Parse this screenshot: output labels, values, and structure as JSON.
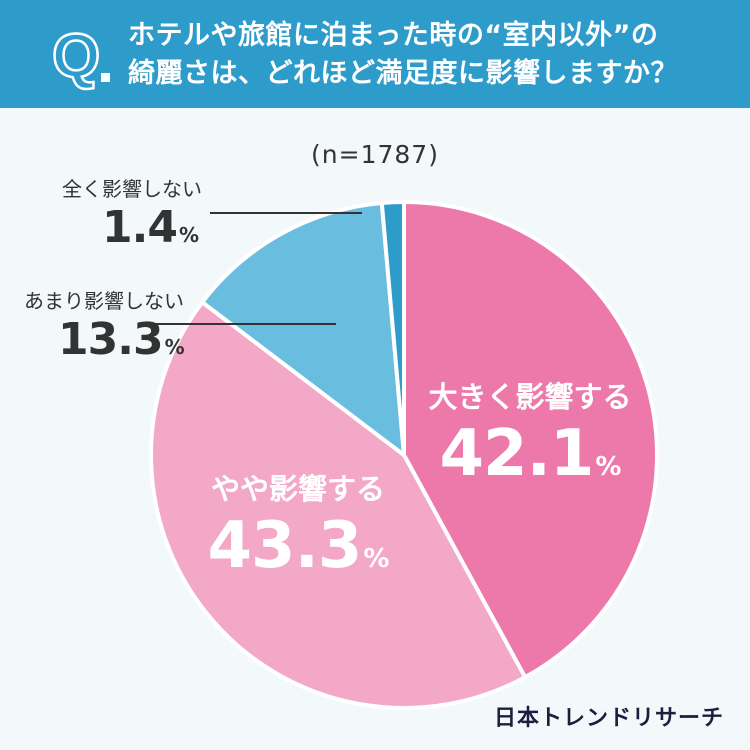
{
  "header": {
    "q_mark": "Q",
    "question_line1": "ホテルや旅館に泊まった時の“室内以外”の",
    "question_line2": "綺麗さは、どれほど満足度に影響しますか？"
  },
  "sample_size": "(n=1787)",
  "labels": {
    "big": {
      "name": "大きく影響する",
      "value": "42.1",
      "unit": "%"
    },
    "some": {
      "name": "やや影響する",
      "value": "43.3",
      "unit": "%"
    },
    "little": {
      "name": "あまり影響しない",
      "value": "13.3",
      "unit": "%"
    },
    "none": {
      "name": "全く影響しない",
      "value": "1.4",
      "unit": "%"
    }
  },
  "brand": "日本トレンドリサーチ",
  "colors": {
    "header_bg": "#2e9ccb",
    "big": "#ec79a9",
    "some": "#f3a8c8",
    "little": "#69bee0",
    "none": "#2e9ccb"
  },
  "chart_data": {
    "type": "pie",
    "title": "",
    "slices": [
      {
        "label": "大きく影響する",
        "value": 42.1
      },
      {
        "label": "やや影響する",
        "value": 43.3
      },
      {
        "label": "あまり影響しない",
        "value": 13.3
      },
      {
        "label": "全く影響しない",
        "value": 1.4
      }
    ],
    "start": "12 o'clock",
    "direction": "clockwise"
  }
}
